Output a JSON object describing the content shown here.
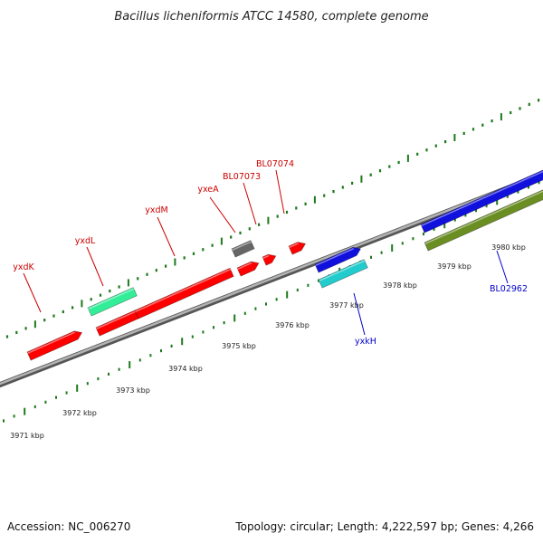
{
  "title": "Bacillus licheniformis ATCC 14580, complete genome",
  "footer": {
    "accession": "Accession: NC_006270",
    "info": "Topology: circular; Length: 4,222,597 bp; Genes: 4,266"
  },
  "colors": {
    "backbone": "#808080",
    "forward_ticks": "#1c7a1c",
    "red_gene": "#ff0000",
    "green_gene": "#33ee99",
    "gray_gene": "#666666",
    "blue_gene": "#1111dd",
    "cyan_gene": "#22cccc",
    "olive_gene": "#6b8e23",
    "label_red": "#cc0000",
    "label_blue": "#0000cc"
  },
  "tick_labels": [
    {
      "id": "t3971",
      "text": "3971 kbp"
    },
    {
      "id": "t3972",
      "text": "3972 kbp"
    },
    {
      "id": "t3973",
      "text": "3973 kbp"
    },
    {
      "id": "t3974",
      "text": "3974 kbp"
    },
    {
      "id": "t3975",
      "text": "3975 kbp"
    },
    {
      "id": "t3976",
      "text": "3976 kbp"
    },
    {
      "id": "t3977",
      "text": "3977 kbp"
    },
    {
      "id": "t3978",
      "text": "3978 kbp"
    },
    {
      "id": "t3979",
      "text": "3979 kbp"
    },
    {
      "id": "t3980",
      "text": "3980 kbp"
    }
  ],
  "gene_labels": [
    {
      "id": "yxdK",
      "text": "yxdK",
      "color": "red"
    },
    {
      "id": "yxdL",
      "text": "yxdL",
      "color": "red"
    },
    {
      "id": "yxdM",
      "text": "yxdM",
      "color": "red"
    },
    {
      "id": "yxeA",
      "text": "yxeA",
      "color": "red"
    },
    {
      "id": "BL07073",
      "text": "BL07073",
      "color": "red"
    },
    {
      "id": "BL07074",
      "text": "BL07074",
      "color": "red"
    },
    {
      "id": "yxkH",
      "text": "yxkH",
      "color": "blue"
    },
    {
      "id": "BL02962",
      "text": "BL02962",
      "color": "blue"
    }
  ]
}
